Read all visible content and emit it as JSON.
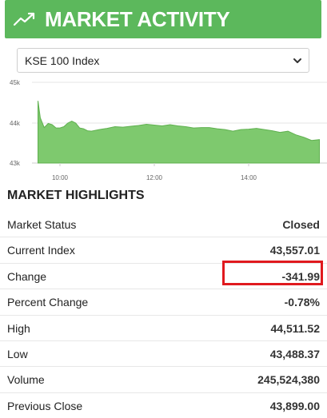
{
  "header": {
    "title": "MARKET ACTIVITY",
    "icon": "trending-up-icon",
    "color": "#5cb85c"
  },
  "index_select": {
    "selected": "KSE 100 Index",
    "icon": "chevron-down-icon"
  },
  "chart_data": {
    "type": "area",
    "y_ticks": [
      "45k",
      "44k",
      "43k"
    ],
    "x_ticks": [
      "10:00",
      "12:00",
      "14:00"
    ],
    "ylim": [
      43000,
      45000
    ],
    "color": "#7ec96e",
    "x": [
      "09:32",
      "09:35",
      "09:40",
      "09:45",
      "09:50",
      "09:55",
      "10:00",
      "10:05",
      "10:10",
      "10:15",
      "10:20",
      "10:25",
      "10:30",
      "10:35",
      "10:40",
      "10:50",
      "11:00",
      "11:10",
      "11:20",
      "11:30",
      "11:40",
      "11:50",
      "12:00",
      "12:10",
      "12:20",
      "12:30",
      "12:40",
      "12:50",
      "13:00",
      "13:10",
      "13:20",
      "13:30",
      "13:40",
      "13:50",
      "14:00",
      "14:10",
      "14:20",
      "14:30",
      "14:40",
      "14:50",
      "15:00",
      "15:10",
      "15:20",
      "15:30"
    ],
    "values": [
      44540,
      44120,
      43880,
      43980,
      43950,
      43870,
      43870,
      43900,
      43990,
      44040,
      43990,
      43870,
      43850,
      43800,
      43790,
      43830,
      43860,
      43900,
      43890,
      43910,
      43930,
      43960,
      43940,
      43920,
      43950,
      43920,
      43900,
      43870,
      43880,
      43880,
      43850,
      43830,
      43790,
      43830,
      43840,
      43860,
      43830,
      43800,
      43760,
      43790,
      43700,
      43640,
      43560,
      43580
    ]
  },
  "highlights": {
    "title": "MARKET HIGHLIGHTS",
    "rows": [
      {
        "label": "Market Status",
        "value": "Closed"
      },
      {
        "label": "Current Index",
        "value": "43,557.01"
      },
      {
        "label": "Change",
        "value": "-341.99"
      },
      {
        "label": "Percent Change",
        "value": "-0.78%"
      },
      {
        "label": "High",
        "value": "44,511.52"
      },
      {
        "label": "Low",
        "value": "43,488.37"
      },
      {
        "label": "Volume",
        "value": "245,524,380"
      },
      {
        "label": "Previous Close",
        "value": "43,899.00"
      }
    ],
    "highlight_color": "#e0191e"
  }
}
